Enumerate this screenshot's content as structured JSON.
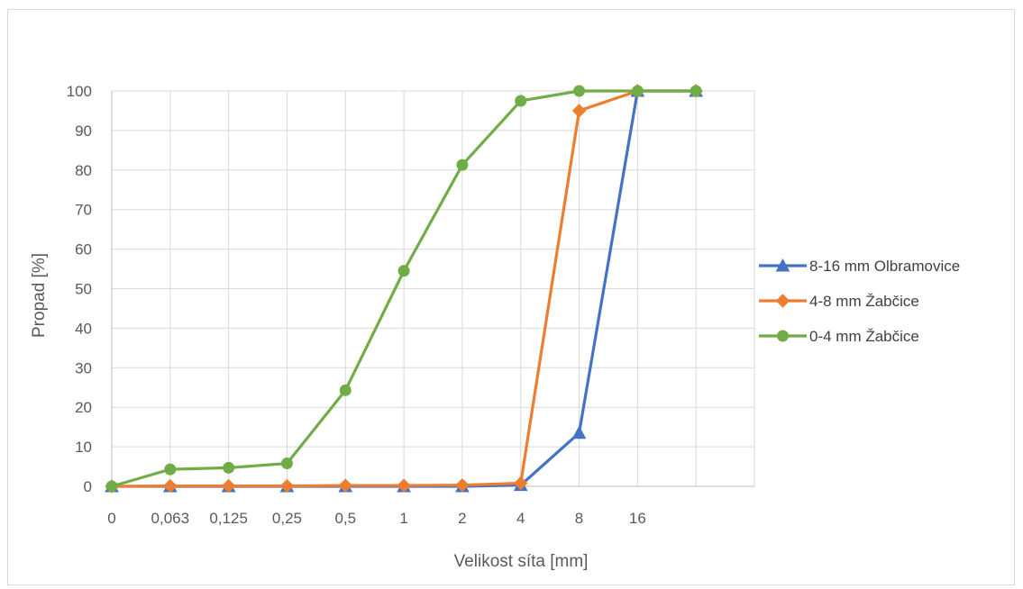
{
  "chart_data": {
    "type": "line",
    "title": "",
    "xlabel": "Velikost síta [mm]",
    "ylabel": "Propad [%]",
    "categories": [
      "0",
      "0,063",
      "0,125",
      "0,25",
      "0,5",
      "1",
      "2",
      "4",
      "8",
      "16",
      ""
    ],
    "ylim": [
      0,
      100
    ],
    "ystep": 10,
    "grid": true,
    "legend": "right",
    "series": [
      {
        "name": "8-16 mm Olbramovice",
        "color": "#4472C4",
        "marker": "triangle",
        "values": [
          0,
          0,
          0,
          0,
          0,
          0,
          0,
          0.3,
          13.5,
          100,
          100
        ]
      },
      {
        "name": "4-8 mm Žabčice",
        "color": "#ED7D31",
        "marker": "diamond",
        "values": [
          0,
          0.1,
          0.1,
          0.1,
          0.2,
          0.2,
          0.3,
          0.8,
          95,
          100,
          100
        ]
      },
      {
        "name": "0-4 mm Žabčice",
        "color": "#70AD47",
        "marker": "circle",
        "values": [
          0,
          4.3,
          4.7,
          5.8,
          24.3,
          54.5,
          81.3,
          97.5,
          100,
          100,
          100
        ]
      }
    ]
  }
}
